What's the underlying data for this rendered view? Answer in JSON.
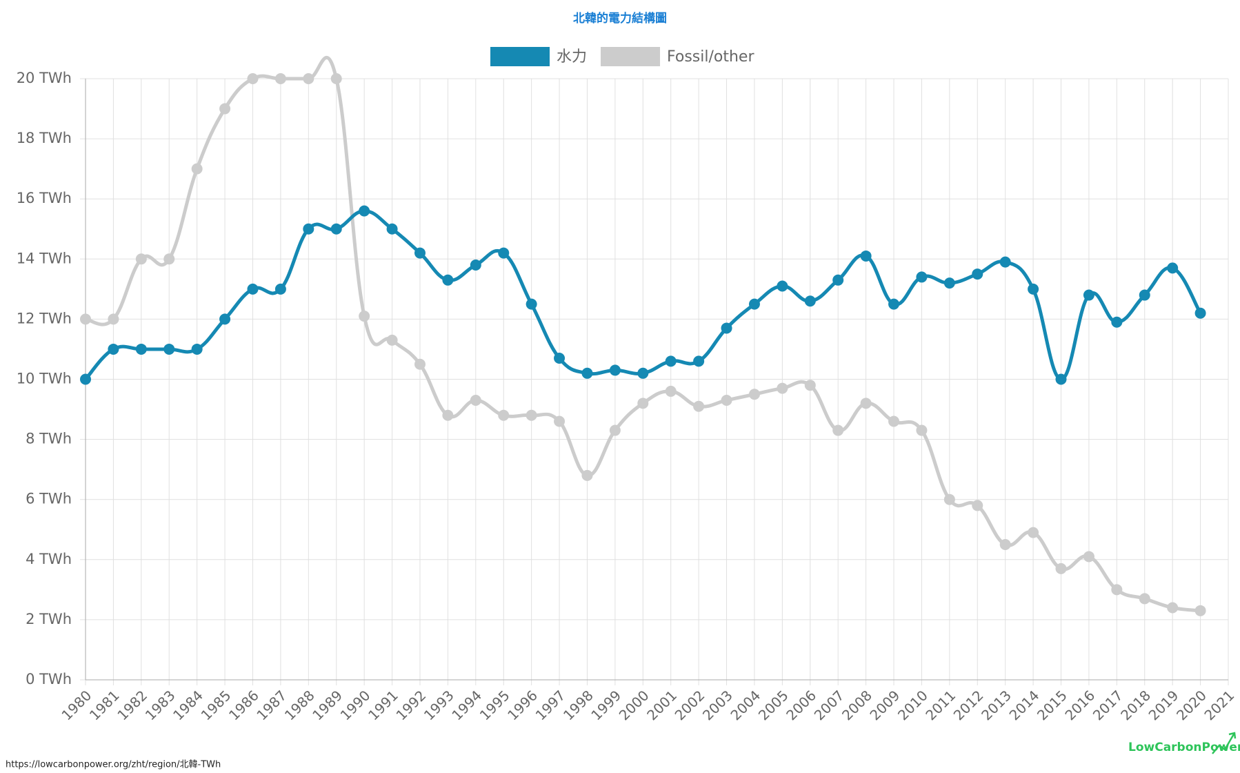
{
  "chart_data": {
    "type": "line",
    "title": "北韓的電力結構圖",
    "legend": "top",
    "grid": true,
    "x": [
      1980,
      1981,
      1982,
      1983,
      1984,
      1985,
      1986,
      1987,
      1988,
      1989,
      1990,
      1991,
      1992,
      1993,
      1994,
      1995,
      1996,
      1997,
      1998,
      1999,
      2000,
      2001,
      2002,
      2003,
      2004,
      2005,
      2006,
      2007,
      2008,
      2009,
      2010,
      2011,
      2012,
      2013,
      2014,
      2015,
      2016,
      2017,
      2018,
      2019,
      2020
    ],
    "series": [
      {
        "name": "水力",
        "color": "#1589b3",
        "values": [
          10,
          11,
          11,
          11,
          11,
          12,
          13,
          13,
          15,
          15,
          15.6,
          15,
          14.2,
          13.3,
          13.8,
          14.2,
          12.5,
          10.7,
          10.2,
          10.3,
          10.2,
          10.6,
          10.6,
          11.7,
          12.5,
          13.1,
          12.6,
          13.3,
          14.1,
          12.5,
          13.4,
          13.2,
          13.5,
          13.9,
          13,
          10,
          12.8,
          11.9,
          12.8,
          13.7,
          12.2
        ]
      },
      {
        "name": "Fossil/other",
        "color": "#cccccc",
        "values": [
          12,
          12,
          14,
          14,
          17,
          19,
          20,
          20,
          20,
          20,
          12.1,
          11.3,
          10.5,
          8.8,
          9.3,
          8.8,
          8.8,
          8.6,
          6.8,
          8.3,
          9.2,
          9.6,
          9.1,
          9.3,
          9.5,
          9.7,
          9.8,
          8.3,
          9.2,
          8.6,
          8.3,
          6.0,
          5.8,
          4.5,
          4.9,
          3.7,
          4.1,
          3.0,
          2.7,
          2.4,
          2.3
        ]
      }
    ],
    "xlim": [
      1980,
      2021
    ],
    "xticks": [
      1980,
      1981,
      1982,
      1983,
      1984,
      1985,
      1986,
      1987,
      1988,
      1989,
      1990,
      1991,
      1992,
      1993,
      1994,
      1995,
      1996,
      1997,
      1998,
      1999,
      2000,
      2001,
      2002,
      2003,
      2004,
      2005,
      2006,
      2007,
      2008,
      2009,
      2010,
      2011,
      2012,
      2013,
      2014,
      2015,
      2016,
      2017,
      2018,
      2019,
      2020,
      2021
    ],
    "ylim": [
      0,
      20
    ],
    "yticks": [
      {
        "value": 0,
        "label": "0 TWh"
      },
      {
        "value": 2,
        "label": "2 TWh"
      },
      {
        "value": 4,
        "label": "4 TWh"
      },
      {
        "value": 6,
        "label": "6 TWh"
      },
      {
        "value": 8,
        "label": "8 TWh"
      },
      {
        "value": 10,
        "label": "10 TWh"
      },
      {
        "value": 12,
        "label": "12 TWh"
      },
      {
        "value": 14,
        "label": "14 TWh"
      },
      {
        "value": 16,
        "label": "16 TWh"
      },
      {
        "value": 18,
        "label": "18 TWh"
      },
      {
        "value": 20,
        "label": "20 TWh"
      }
    ]
  },
  "footer": {
    "source_url": "https://lowcarbonpower.org/zht/region/北韓-TWh",
    "brand": "LowCarbonPower"
  }
}
